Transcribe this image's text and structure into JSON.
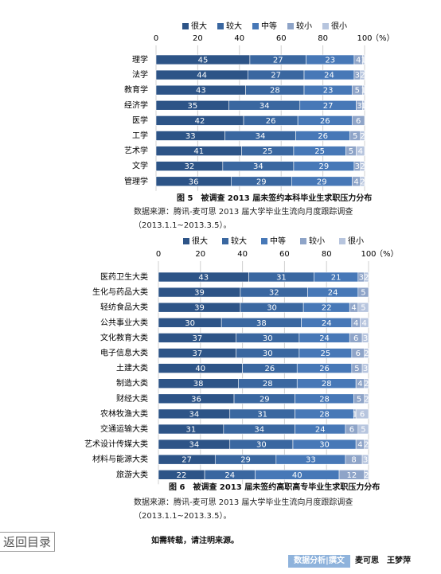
{
  "chart_data": [
    {
      "type": "bar",
      "orientation": "horizontal",
      "stacked": true,
      "caption": "图 5　被调查 2013 届未签约本科毕业生求职压力分布",
      "source": "数据来源：腾讯-麦可思 2013 届大学毕业生流向月度跟踪调查（2013.1.1~2013.3.5）。",
      "x_unit": "（%）",
      "categories": [
        "理学",
        "法学",
        "教育学",
        "经济学",
        "医学",
        "工学",
        "艺术学",
        "文学",
        "管理学"
      ],
      "series": [
        {
          "name": "很大",
          "color": "#2d5487",
          "values": [
            45,
            44,
            43,
            35,
            42,
            33,
            41,
            32,
            36
          ]
        },
        {
          "name": "较大",
          "color": "#3a67a0",
          "values": [
            27,
            27,
            28,
            34,
            26,
            34,
            25,
            34,
            29
          ]
        },
        {
          "name": "中等",
          "color": "#4778b7",
          "values": [
            23,
            24,
            23,
            27,
            26,
            26,
            25,
            29,
            29
          ]
        },
        {
          "name": "较小",
          "color": "#8ea4c8",
          "values": [
            4,
            3,
            5,
            3,
            6,
            5,
            5,
            3,
            4
          ]
        },
        {
          "name": "很小",
          "color": "#b7c5de",
          "values": [
            1,
            2,
            1,
            1,
            0,
            2,
            4,
            2,
            2
          ]
        }
      ],
      "xlim": [
        0,
        100
      ],
      "xticks": [
        0,
        20,
        40,
        60,
        80,
        100
      ],
      "grid": true
    },
    {
      "type": "bar",
      "orientation": "horizontal",
      "stacked": true,
      "caption": "图 6　被调查 2013 届未签约高职高专毕业生求职压力分布",
      "source": "数据来源：腾讯-麦可思 2013 届大学毕业生流向月度跟踪调查（2013.1.1~2013.3.5）。",
      "x_unit": "（%）",
      "categories": [
        "医药卫生大类",
        "生化与药品大类",
        "轻纺食品大类",
        "公共事业大类",
        "文化教育大类",
        "电子信息大类",
        "土建大类",
        "制造大类",
        "财经大类",
        "农林牧渔大类",
        "交通运输大类",
        "艺术设计传媒大类",
        "材料与能源大类",
        "旅游大类"
      ],
      "series": [
        {
          "name": "很大",
          "color": "#2d5487",
          "values": [
            43,
            39,
            39,
            30,
            37,
            37,
            40,
            38,
            36,
            34,
            31,
            34,
            27,
            22
          ]
        },
        {
          "name": "较大",
          "color": "#3a67a0",
          "values": [
            31,
            32,
            30,
            38,
            30,
            30,
            26,
            28,
            29,
            31,
            34,
            30,
            29,
            24
          ]
        },
        {
          "name": "中等",
          "color": "#4778b7",
          "values": [
            21,
            24,
            22,
            24,
            24,
            25,
            26,
            28,
            28,
            28,
            24,
            30,
            33,
            40
          ]
        },
        {
          "name": "较小",
          "color": "#8ea4c8",
          "values": [
            3,
            5,
            4,
            4,
            6,
            6,
            5,
            4,
            5,
            1,
            6,
            4,
            8,
            12
          ]
        },
        {
          "name": "很小",
          "color": "#b7c5de",
          "values": [
            2,
            0,
            5,
            4,
            3,
            2,
            3,
            2,
            2,
            6,
            5,
            2,
            3,
            2
          ]
        }
      ],
      "xlim": [
        0,
        100
      ],
      "xticks": [
        0,
        20,
        40,
        60,
        80,
        100
      ],
      "grid": true
    }
  ],
  "nav": {
    "back": "返回目录"
  },
  "notice": "如需转载，请注明来源。",
  "footer": {
    "tag": "数据分析|撰文",
    "author": "麦可思　王梦萍"
  }
}
